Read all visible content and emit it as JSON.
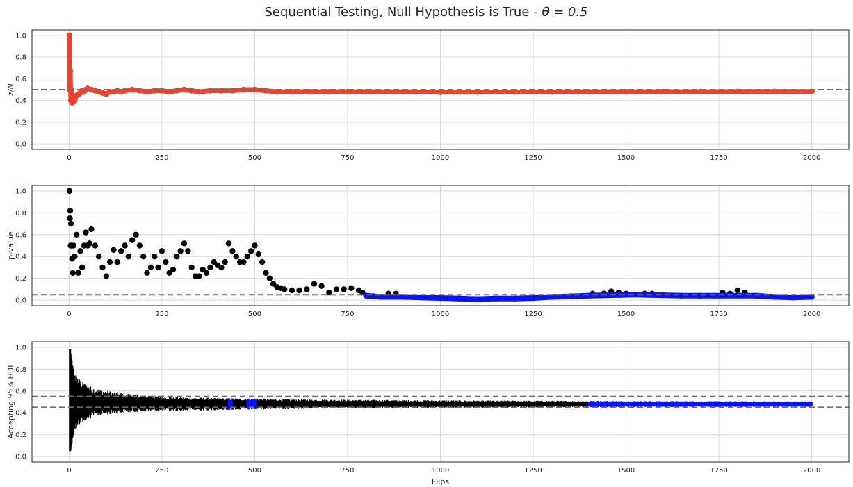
{
  "figure": {
    "title": "Sequential Testing, Null Hypothesis is True - θ = 0.5",
    "title_plain": "Sequential Testing, Null Hypothesis is True - ",
    "title_math": "θ = 0.5"
  },
  "colors": {
    "series_red": "#E8442E",
    "series_black": "#000000",
    "series_blue": "#0A14F0",
    "reference_line": "#6E6E6E",
    "grid": "#D9D9D9",
    "frame": "#262626"
  },
  "chart_data": [
    {
      "type": "scatter",
      "ylabel": "z/N",
      "xlabel": "",
      "xlim": [
        -100,
        2100
      ],
      "ylim": [
        -0.05,
        1.05
      ],
      "xticks": [
        0,
        250,
        500,
        750,
        1000,
        1250,
        1500,
        1750,
        2000
      ],
      "xtick_labels": [
        "0",
        "250",
        "500",
        "750",
        "1000",
        "1250",
        "1500",
        "1750",
        "2000"
      ],
      "yticks": [
        0.0,
        0.2,
        0.4,
        0.6,
        0.8,
        1.0
      ],
      "ytick_labels": [
        "0.0",
        "0.2",
        "0.4",
        "0.6",
        "0.8",
        "1.0"
      ],
      "grid": true,
      "reference_lines": [
        0.5
      ],
      "series": [
        {
          "color": "#E8442E",
          "x": [
            1,
            2,
            3,
            4,
            5,
            6,
            8,
            10,
            12,
            15,
            18,
            22,
            26,
            30,
            35,
            40,
            45,
            50,
            60,
            70,
            80,
            90,
            100,
            110,
            120,
            130,
            140,
            150,
            170,
            190,
            210,
            230,
            250,
            270,
            290,
            310,
            330,
            350,
            380,
            410,
            440,
            470,
            500,
            530,
            560,
            600,
            650,
            700,
            750,
            800,
            900,
            1000,
            1100,
            1200,
            1300,
            1400,
            1500,
            1600,
            1700,
            1800,
            1900,
            2000
          ],
          "y": [
            1.0,
            0.5,
            0.67,
            0.5,
            0.4,
            0.5,
            0.38,
            0.4,
            0.42,
            0.4,
            0.44,
            0.45,
            0.46,
            0.47,
            0.49,
            0.48,
            0.5,
            0.51,
            0.5,
            0.49,
            0.48,
            0.47,
            0.46,
            0.48,
            0.48,
            0.49,
            0.48,
            0.49,
            0.5,
            0.49,
            0.48,
            0.49,
            0.49,
            0.48,
            0.49,
            0.5,
            0.49,
            0.48,
            0.49,
            0.49,
            0.49,
            0.5,
            0.5,
            0.49,
            0.48,
            0.48,
            0.48,
            0.48,
            0.48,
            0.48,
            0.48,
            0.477,
            0.477,
            0.478,
            0.478,
            0.48,
            0.48,
            0.481,
            0.481,
            0.482,
            0.482,
            0.482
          ]
        }
      ]
    },
    {
      "type": "scatter",
      "ylabel": "p-value",
      "xlabel": "",
      "xlim": [
        -100,
        2100
      ],
      "ylim": [
        -0.05,
        1.05
      ],
      "xticks": [
        0,
        250,
        500,
        750,
        1000,
        1250,
        1500,
        1750,
        2000
      ],
      "xtick_labels": [
        "0",
        "250",
        "500",
        "750",
        "1000",
        "1250",
        "1500",
        "1750",
        "2000"
      ],
      "yticks": [
        0.0,
        0.2,
        0.4,
        0.6,
        0.8,
        1.0
      ],
      "ytick_labels": [
        "0.0",
        "0.2",
        "0.4",
        "0.6",
        "0.8",
        "1.0"
      ],
      "grid": true,
      "reference_lines": [
        0.05
      ],
      "series": [
        {
          "color": "#000000",
          "x": [
            1,
            2,
            3,
            4,
            5,
            6,
            8,
            10,
            12,
            15,
            20,
            25,
            30,
            35,
            40,
            45,
            50,
            55,
            60,
            70,
            80,
            90,
            100,
            110,
            120,
            130,
            140,
            150,
            160,
            170,
            180,
            190,
            200,
            210,
            220,
            230,
            240,
            250,
            260,
            270,
            280,
            290,
            300,
            310,
            320,
            330,
            340,
            350,
            360,
            370,
            380,
            390,
            400,
            410,
            420,
            430,
            440,
            450,
            460,
            470,
            480,
            490,
            500,
            510,
            520,
            530,
            540,
            550,
            560,
            570,
            580,
            600,
            620,
            640,
            660,
            680,
            700,
            720,
            740,
            760,
            780,
            790,
            860,
            880,
            1410,
            1440,
            1460,
            1480,
            1500,
            1550,
            1570,
            1760,
            1780,
            1800,
            1820
          ],
          "y": [
            1.0,
            0.75,
            0.82,
            0.5,
            0.7,
            0.5,
            0.38,
            0.25,
            0.5,
            0.4,
            0.6,
            0.25,
            0.45,
            0.3,
            0.5,
            0.62,
            0.5,
            0.52,
            0.65,
            0.5,
            0.4,
            0.3,
            0.22,
            0.35,
            0.46,
            0.35,
            0.45,
            0.5,
            0.4,
            0.55,
            0.6,
            0.5,
            0.4,
            0.25,
            0.3,
            0.4,
            0.3,
            0.45,
            0.35,
            0.25,
            0.28,
            0.4,
            0.45,
            0.52,
            0.45,
            0.3,
            0.22,
            0.22,
            0.28,
            0.25,
            0.3,
            0.35,
            0.32,
            0.3,
            0.35,
            0.52,
            0.45,
            0.4,
            0.35,
            0.35,
            0.4,
            0.45,
            0.5,
            0.42,
            0.35,
            0.25,
            0.2,
            0.15,
            0.12,
            0.11,
            0.1,
            0.09,
            0.09,
            0.1,
            0.15,
            0.13,
            0.07,
            0.1,
            0.1,
            0.11,
            0.09,
            0.07,
            0.06,
            0.06,
            0.06,
            0.06,
            0.08,
            0.07,
            0.06,
            0.06,
            0.06,
            0.07,
            0.06,
            0.09,
            0.07
          ]
        },
        {
          "color": "#0A14F0",
          "x": [
            800,
            820,
            840,
            900,
            950,
            1000,
            1050,
            1100,
            1150,
            1200,
            1250,
            1300,
            1350,
            1400,
            1520,
            1600,
            1650,
            1700,
            1740,
            1850,
            1900,
            1950,
            2000
          ],
          "y": [
            0.04,
            0.035,
            0.03,
            0.03,
            0.025,
            0.02,
            0.015,
            0.01,
            0.015,
            0.015,
            0.02,
            0.03,
            0.035,
            0.04,
            0.05,
            0.045,
            0.04,
            0.04,
            0.04,
            0.04,
            0.03,
            0.025,
            0.03
          ]
        }
      ]
    },
    {
      "type": "hdi_interval",
      "ylabel": "Accepting 95% HDI",
      "xlabel": "Flips",
      "xlim": [
        -100,
        2100
      ],
      "ylim": [
        -0.05,
        1.05
      ],
      "xticks": [
        0,
        250,
        500,
        750,
        1000,
        1250,
        1500,
        1750,
        2000
      ],
      "xtick_labels": [
        "0",
        "250",
        "500",
        "750",
        "1000",
        "1250",
        "1500",
        "1750",
        "2000"
      ],
      "yticks": [
        0.0,
        0.2,
        0.4,
        0.6,
        0.8,
        1.0
      ],
      "ytick_labels": [
        "0.0",
        "0.2",
        "0.4",
        "0.6",
        "0.8",
        "1.0"
      ],
      "grid": true,
      "reference_lines": [
        0.45,
        0.55
      ],
      "center": [
        0.5,
        0.48
      ],
      "width_at_n1": 0.9,
      "min_half_width": 0.012,
      "accept_ranges": [
        [
          430,
          440
        ],
        [
          480,
          505
        ],
        [
          1400,
          2000
        ]
      ],
      "series": [
        {
          "name": "",
          "color": "#000000"
        },
        {
          "name": "",
          "color": "#0A14F0"
        }
      ]
    }
  ]
}
